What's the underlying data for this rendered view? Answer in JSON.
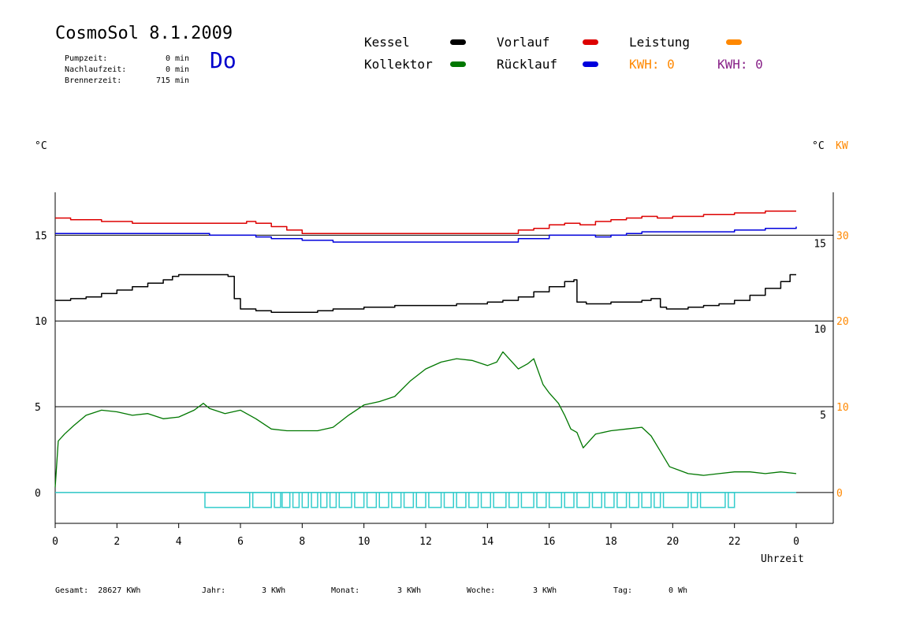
{
  "header": {
    "title": "CosmoSol 8.1.2009",
    "day": "Do",
    "stats": [
      {
        "label": "Pumpzeit:",
        "value": "0",
        "unit": "min"
      },
      {
        "label": "Nachlaufzeit:",
        "value": "0",
        "unit": "min"
      },
      {
        "label": "Brennerzeit:",
        "value": "715",
        "unit": "min"
      }
    ]
  },
  "legend": {
    "kessel": "Kessel",
    "kollektor": "Kollektor",
    "vorlauf": "Vorlauf",
    "ruecklauf": "Rücklauf",
    "leistung": "Leistung",
    "kwh_orange": "KWH: 0",
    "kwh_purple": "KWH: 0"
  },
  "colors": {
    "kessel": "#000000",
    "kollektor": "#007700",
    "vorlauf": "#dd0000",
    "ruecklauf": "#0000dd",
    "leistung": "#ff8800",
    "kwh_purple": "#882288",
    "pump": "#33cccc"
  },
  "axes": {
    "left_unit": "°C",
    "right_unit": "°C",
    "right_unit2": "KW",
    "xlabel": "Uhrzeit"
  },
  "footer": {
    "gesamt_label": "Gesamt:",
    "gesamt_value": "28627 KWh",
    "jahr_label": "Jahr:",
    "jahr_value": "3 KWh",
    "monat_label": "Monat:",
    "monat_value": "3 KWh",
    "woche_label": "Woche:",
    "woche_value": "3 KWh",
    "tag_label": "Tag:",
    "tag_value": "0 Wh"
  },
  "chart_data": {
    "type": "line",
    "x_unit": "hours",
    "xlim": [
      0,
      24
    ],
    "x_tick_labels": [
      "0",
      "2",
      "4",
      "6",
      "8",
      "10",
      "12",
      "14",
      "16",
      "18",
      "20",
      "22",
      "0"
    ],
    "left_ticks": [
      0,
      5,
      10,
      15
    ],
    "left_ylim": [
      -1.8,
      17.5
    ],
    "right_offset_ticks": [
      {
        "value": 5,
        "label": "5"
      },
      {
        "value": 10,
        "label": "10"
      },
      {
        "value": 15,
        "label": "15"
      }
    ],
    "right_kw_ticks": [
      {
        "value": 0,
        "label": "0"
      },
      {
        "value": 5,
        "label": "10"
      },
      {
        "value": 10,
        "label": "20"
      },
      {
        "value": 15,
        "label": "30"
      }
    ],
    "series": [
      {
        "name": "Vorlauf",
        "key": "vorlauf",
        "step": true,
        "x": [
          0,
          0.5,
          1,
          1.5,
          2,
          2.5,
          3,
          4,
          5,
          5.8,
          6.2,
          6.5,
          7,
          7.5,
          8,
          8.5,
          9,
          10,
          11,
          12,
          13,
          14,
          15,
          15.5,
          16,
          16.5,
          17,
          17.5,
          18,
          18.5,
          19,
          19.5,
          20,
          20.5,
          21,
          21.5,
          22,
          23,
          24
        ],
        "y": [
          16.0,
          15.9,
          15.9,
          15.8,
          15.8,
          15.7,
          15.7,
          15.7,
          15.7,
          15.7,
          15.8,
          15.7,
          15.5,
          15.3,
          15.1,
          15.1,
          15.1,
          15.1,
          15.1,
          15.1,
          15.1,
          15.1,
          15.3,
          15.4,
          15.6,
          15.7,
          15.6,
          15.8,
          15.9,
          16.0,
          16.1,
          16.0,
          16.1,
          16.1,
          16.2,
          16.2,
          16.3,
          16.4,
          16.4
        ]
      },
      {
        "name": "Rücklauf",
        "key": "ruecklauf",
        "step": true,
        "x": [
          0,
          1,
          2,
          3,
          4,
          5,
          6,
          6.5,
          7,
          8,
          9,
          10,
          11,
          12,
          13,
          14,
          15,
          16,
          17,
          17.5,
          18,
          18.5,
          19,
          20,
          21,
          22,
          23,
          24
        ],
        "y": [
          15.1,
          15.1,
          15.1,
          15.1,
          15.1,
          15.0,
          15.0,
          14.9,
          14.8,
          14.7,
          14.6,
          14.6,
          14.6,
          14.6,
          14.6,
          14.6,
          14.8,
          15.0,
          15.0,
          14.9,
          15.0,
          15.1,
          15.2,
          15.2,
          15.2,
          15.3,
          15.4,
          15.5
        ]
      },
      {
        "name": "Kessel",
        "key": "kessel",
        "step": true,
        "x": [
          0,
          0.5,
          1,
          1.5,
          2,
          2.5,
          3,
          3.5,
          3.8,
          4,
          4.5,
          5,
          5.5,
          5.6,
          5.8,
          6,
          6.5,
          7,
          7.5,
          8,
          8.5,
          9,
          10,
          11,
          12,
          13,
          14,
          14.5,
          15,
          15.5,
          16,
          16.5,
          16.8,
          16.9,
          17.2,
          17.5,
          18,
          18.5,
          19,
          19.3,
          19.6,
          19.8,
          20,
          20.5,
          21,
          21.5,
          22,
          22.5,
          23,
          23.5,
          23.8,
          24
        ],
        "y": [
          11.2,
          11.3,
          11.4,
          11.6,
          11.8,
          12.0,
          12.2,
          12.4,
          12.6,
          12.7,
          12.7,
          12.7,
          12.7,
          12.6,
          11.3,
          10.7,
          10.6,
          10.5,
          10.5,
          10.5,
          10.6,
          10.7,
          10.8,
          10.9,
          10.9,
          11.0,
          11.1,
          11.2,
          11.4,
          11.7,
          12.0,
          12.3,
          12.4,
          11.1,
          11.0,
          11.0,
          11.1,
          11.1,
          11.2,
          11.3,
          10.8,
          10.7,
          10.7,
          10.8,
          10.9,
          11.0,
          11.2,
          11.5,
          11.9,
          12.3,
          12.7,
          12.7
        ]
      },
      {
        "name": "Kollektor",
        "key": "kollektor",
        "step": false,
        "x": [
          0,
          0.1,
          0.3,
          0.6,
          1,
          1.5,
          2,
          2.5,
          3,
          3.5,
          4,
          4.5,
          4.8,
          5,
          5.5,
          6,
          6.5,
          7,
          7.5,
          8,
          8.5,
          9,
          9.5,
          10,
          10.5,
          11,
          11.5,
          12,
          12.5,
          13,
          13.5,
          14,
          14.3,
          14.5,
          14.8,
          15,
          15.3,
          15.5,
          15.8,
          16,
          16.3,
          16.5,
          16.7,
          16.9,
          17.1,
          17.5,
          18,
          18.5,
          19,
          19.3,
          19.6,
          19.9,
          20.2,
          20.5,
          21,
          21.5,
          22,
          22.5,
          23,
          23.5,
          24
        ],
        "y": [
          0.3,
          3.0,
          3.4,
          3.9,
          4.5,
          4.8,
          4.7,
          4.5,
          4.6,
          4.3,
          4.4,
          4.8,
          5.2,
          4.9,
          4.6,
          4.8,
          4.3,
          3.7,
          3.6,
          3.6,
          3.6,
          3.8,
          4.5,
          5.1,
          5.3,
          5.6,
          6.5,
          7.2,
          7.6,
          7.8,
          7.7,
          7.4,
          7.6,
          8.2,
          7.6,
          7.2,
          7.5,
          7.8,
          6.3,
          5.8,
          5.2,
          4.5,
          3.7,
          3.5,
          2.6,
          3.4,
          3.6,
          3.7,
          3.8,
          3.3,
          2.4,
          1.5,
          1.3,
          1.1,
          1.0,
          1.1,
          1.2,
          1.2,
          1.1,
          1.2,
          1.1
        ]
      }
    ],
    "pump_on_intervals": [
      [
        4.85,
        6.3
      ],
      [
        6.4,
        7.0
      ],
      [
        7.1,
        7.3
      ],
      [
        7.35,
        7.6
      ],
      [
        7.7,
        7.9
      ],
      [
        8.0,
        8.2
      ],
      [
        8.3,
        8.5
      ],
      [
        8.6,
        8.8
      ],
      [
        8.9,
        9.1
      ],
      [
        9.2,
        9.6
      ],
      [
        9.7,
        10.0
      ],
      [
        10.1,
        10.4
      ],
      [
        10.5,
        10.8
      ],
      [
        10.9,
        11.2
      ],
      [
        11.3,
        11.6
      ],
      [
        11.7,
        12.0
      ],
      [
        12.1,
        12.5
      ],
      [
        12.6,
        12.9
      ],
      [
        13.0,
        13.3
      ],
      [
        13.4,
        13.7
      ],
      [
        13.8,
        14.1
      ],
      [
        14.2,
        14.6
      ],
      [
        14.7,
        15.0
      ],
      [
        15.1,
        15.5
      ],
      [
        15.6,
        15.9
      ],
      [
        16.0,
        16.4
      ],
      [
        16.5,
        16.8
      ],
      [
        16.9,
        17.3
      ],
      [
        17.4,
        17.7
      ],
      [
        17.8,
        18.1
      ],
      [
        18.2,
        18.5
      ],
      [
        18.6,
        18.9
      ],
      [
        19.0,
        19.3
      ],
      [
        19.4,
        19.6
      ],
      [
        19.7,
        20.5
      ],
      [
        20.6,
        20.8
      ],
      [
        20.9,
        21.7
      ],
      [
        21.8,
        22.0
      ]
    ],
    "hlines": [
      0,
      5,
      10,
      15
    ]
  }
}
